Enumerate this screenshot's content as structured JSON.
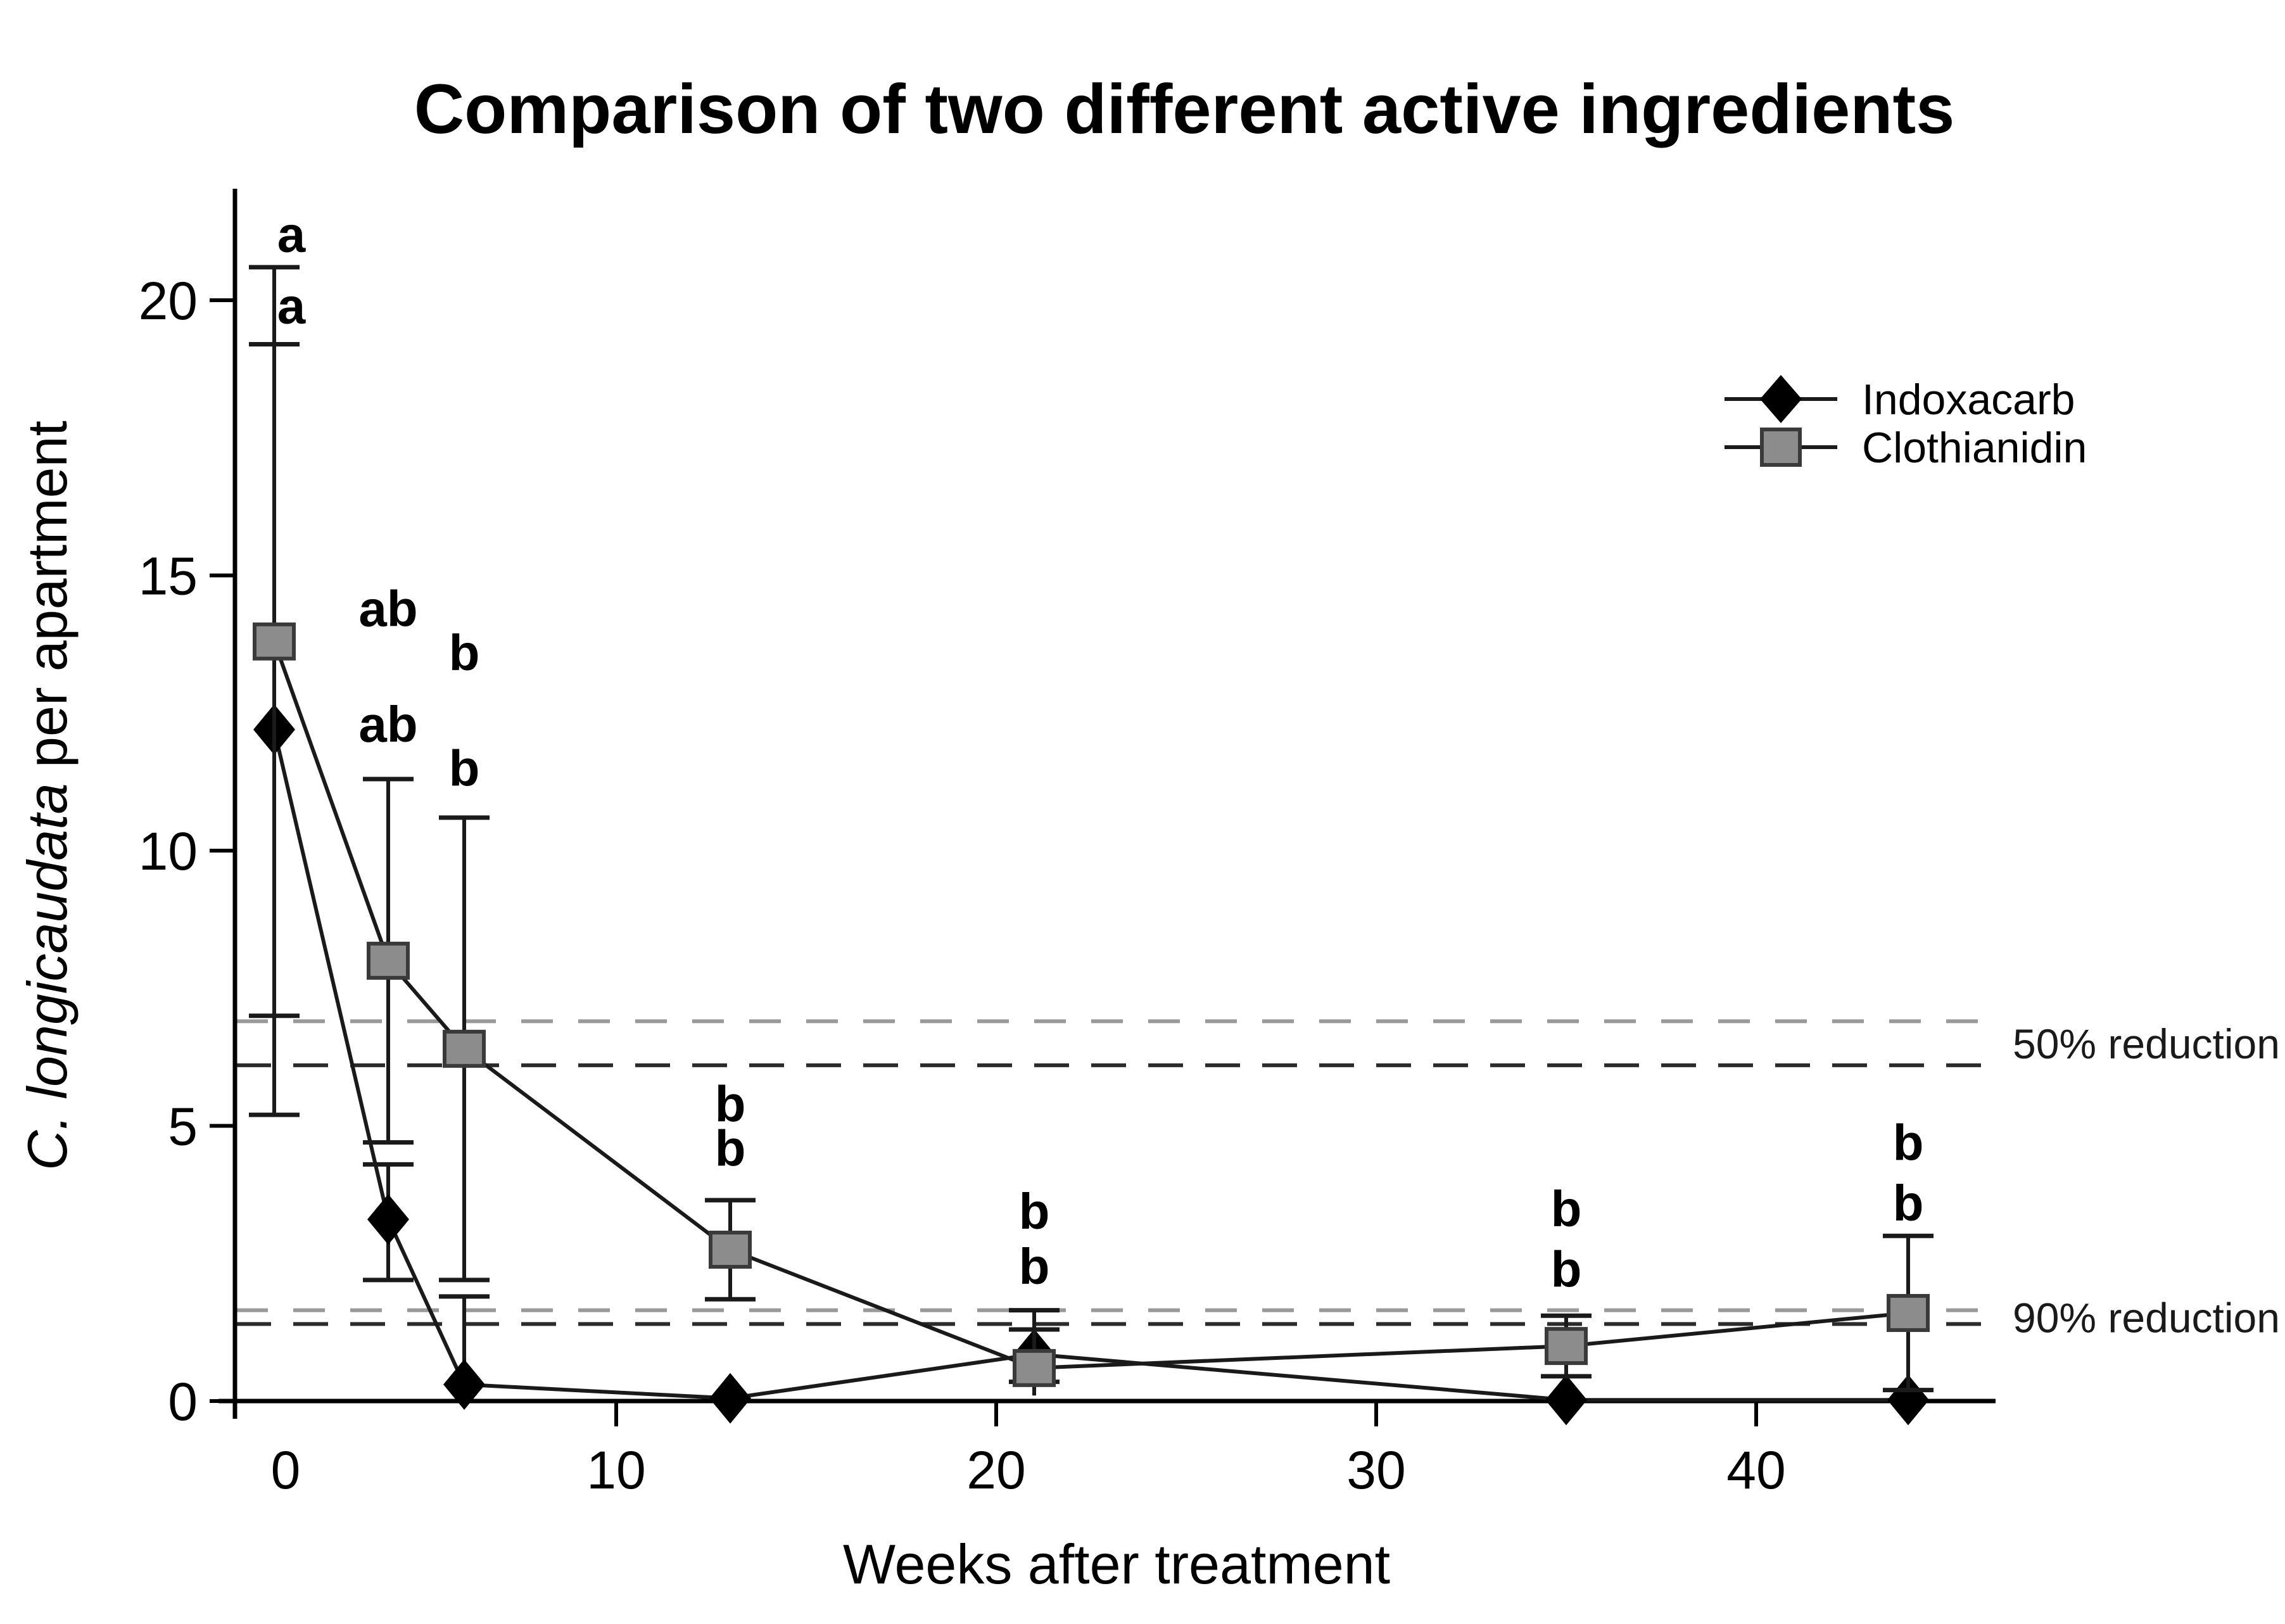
{
  "title": "Comparison of two different active ingredients",
  "legend": {
    "items": [
      {
        "label": "Indoxacarb",
        "marker": "diamond-icon",
        "color": "#000000"
      },
      {
        "label": "Clothianidin",
        "marker": "square-icon",
        "color": "#8c8c8c"
      }
    ]
  },
  "chart_data": {
    "type": "line",
    "title": "Comparison of two different active ingredients",
    "xlabel": "Weeks after treatment",
    "ylabel_italic": "C. longicaudata",
    "ylabel_rest": " per apartment",
    "x": [
      1,
      4,
      6,
      13,
      21,
      35,
      44
    ],
    "x_ticks": [
      0,
      10,
      20,
      30,
      40
    ],
    "y_ticks": [
      0,
      5,
      10,
      15,
      20
    ],
    "xlim": [
      0,
      46.3
    ],
    "ylim": [
      0,
      22
    ],
    "grid": false,
    "legend_position": "upper right",
    "series": [
      {
        "name": "Indoxacarb",
        "marker": "diamond",
        "color": "#000000",
        "line_color": "#1a1a1a",
        "letter_color": "#000000",
        "values": [
          12.2,
          3.3,
          0.3,
          0.05,
          0.85,
          0.02,
          0.02
        ],
        "err_low": [
          5.2,
          2.2,
          0,
          null,
          0.35,
          null,
          null
        ],
        "err_high": [
          19.2,
          4.3,
          1.9,
          null,
          1.65,
          null,
          null
        ],
        "sig_letters": [
          "a",
          "ab",
          "b",
          "b",
          "b",
          "b",
          "b"
        ],
        "letter_y": [
          19.9,
          12.3,
          11.5,
          4.6,
          2.45,
          2.4,
          3.6
        ]
      },
      {
        "name": "Clothianidin",
        "marker": "square",
        "color": "#8c8c8c",
        "line_color": "#1a1a1a",
        "letter_color": "#9a9a9a",
        "values": [
          13.8,
          8.0,
          6.4,
          2.75,
          0.6,
          1.0,
          1.6
        ],
        "err_low": [
          7.0,
          4.7,
          2.2,
          1.85,
          0.1,
          0.45,
          0.2
        ],
        "err_high": [
          20.6,
          11.3,
          10.6,
          3.65,
          1.3,
          1.55,
          3.0
        ],
        "sig_letters": [
          "a",
          "ab",
          "b",
          "b",
          "b",
          "b",
          "b"
        ],
        "letter_y": [
          21.2,
          14.4,
          13.6,
          5.4,
          3.45,
          3.5,
          4.7
        ]
      }
    ],
    "reference_lines": [
      {
        "label": "50% reduction",
        "lines": [
          {
            "y": 6.9,
            "color": "#999999"
          },
          {
            "y": 6.1,
            "color": "#2b2b2b"
          }
        ]
      },
      {
        "label": "90% reduction",
        "lines": [
          {
            "y": 1.65,
            "color": "#999999"
          },
          {
            "y": 1.4,
            "color": "#2b2b2b"
          }
        ]
      }
    ]
  }
}
